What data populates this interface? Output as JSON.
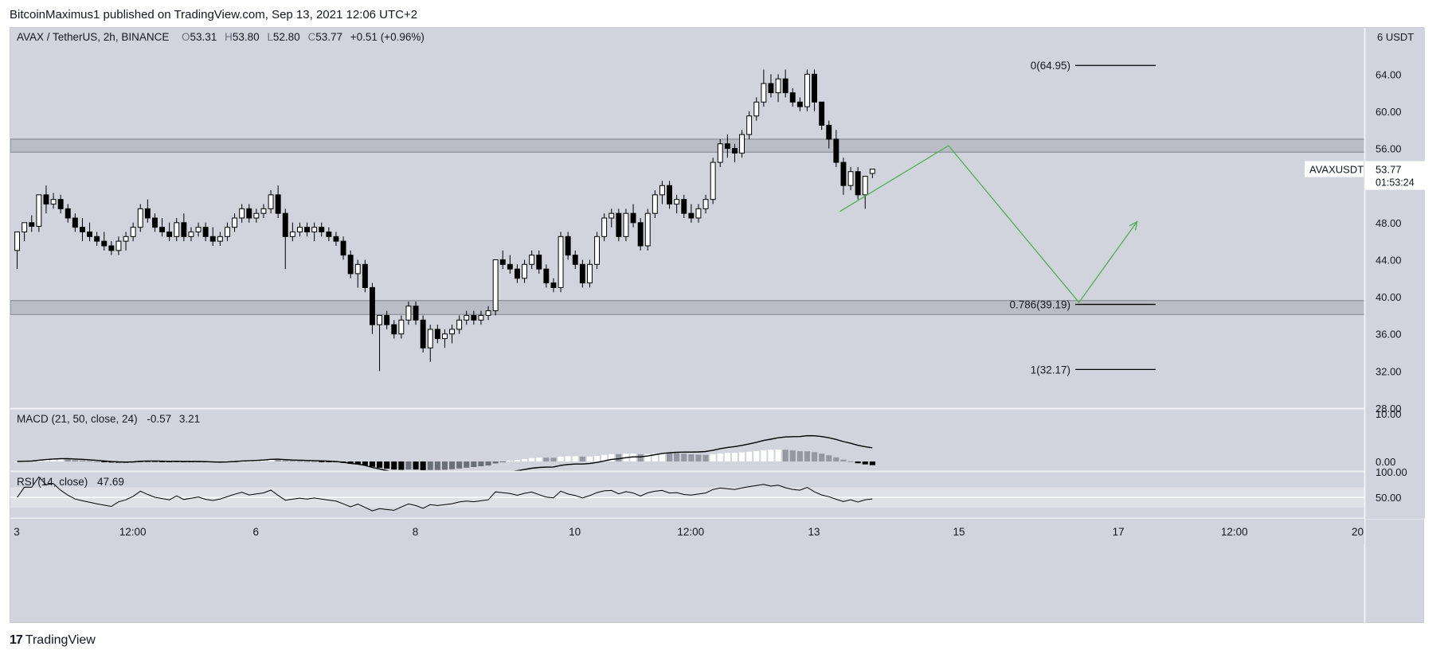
{
  "header": {
    "publish_line": "BitcoinMaximus1 published on TradingView.com, Sep 13, 2021 12:06 UTC+2"
  },
  "footer": {
    "brand": "TradingView",
    "logo_glyph": "17"
  },
  "colors": {
    "panel_bg": "#d1d4dc",
    "candle_up": "#ffffff",
    "candle_down": "#000000",
    "projection": "#4caf50"
  },
  "chart_data": [
    {
      "type": "candlestick",
      "legend": {
        "symbol": "AVAX / TetherUS, 2h, BINANCE",
        "open_label": "O",
        "open": "53.31",
        "high_label": "H",
        "high": "53.80",
        "low_label": "L",
        "low": "52.80",
        "close_label": "C",
        "close": "53.77",
        "change": "+0.51 (+0.96%)"
      },
      "currency_label": "6 USDT",
      "ylim": [
        28,
        69
      ],
      "y_ticks": [
        "64.00",
        "60.00",
        "56.00",
        "52.00",
        "48.00",
        "44.00",
        "40.00",
        "36.00",
        "32.00",
        "28.00"
      ],
      "x_ticks": [
        {
          "label": "3",
          "bar": 0
        },
        {
          "label": "12:00",
          "bar": 16
        },
        {
          "label": "6",
          "bar": 33
        },
        {
          "label": "8",
          "bar": 55
        },
        {
          "label": "10",
          "bar": 77
        },
        {
          "label": "12:00",
          "bar": 93
        },
        {
          "label": "13",
          "bar": 110
        },
        {
          "label": "15",
          "bar": 130
        },
        {
          "label": "17",
          "bar": 152
        },
        {
          "label": "12:00",
          "bar": 168
        },
        {
          "label": "20",
          "bar": 185
        }
      ],
      "price_tag": {
        "symbol": "AVAXUSDT",
        "price": "53.77",
        "countdown": "01:53:24",
        "value": 53.77
      },
      "zones": [
        {
          "low": 55.6,
          "high": 57.0
        },
        {
          "low": 38.1,
          "high": 39.6
        }
      ],
      "fib_levels": [
        {
          "label": "0(64.95)",
          "value": 64.95
        },
        {
          "label": "0.786(39.19)",
          "value": 39.19
        },
        {
          "label": "1(32.17)",
          "value": 32.17
        }
      ],
      "projection_path": [
        {
          "bar": 114,
          "price": 49.2
        },
        {
          "bar": 129,
          "price": 56.3
        },
        {
          "bar": 147,
          "price": 39.4
        },
        {
          "bar": 155,
          "price": 48.1
        }
      ],
      "candles": [
        [
          45,
          47,
          43,
          47
        ],
        [
          47,
          48,
          46,
          48
        ],
        [
          48,
          48.8,
          47,
          47.6
        ],
        [
          47.6,
          51,
          47,
          51
        ],
        [
          51,
          52,
          49,
          50
        ],
        [
          50,
          51.2,
          49.5,
          50.5
        ],
        [
          50.5,
          51,
          49,
          49.5
        ],
        [
          49.5,
          50,
          48,
          48.5
        ],
        [
          48.5,
          49,
          47,
          47.5
        ],
        [
          47.5,
          48.5,
          46,
          47
        ],
        [
          47,
          48,
          46,
          46.5
        ],
        [
          46.5,
          47,
          45.5,
          46
        ],
        [
          46,
          47,
          45,
          45.5
        ],
        [
          45.5,
          46,
          44.5,
          45
        ],
        [
          45,
          46.5,
          44.5,
          46
        ],
        [
          46,
          47,
          45,
          46.5
        ],
        [
          46.5,
          48,
          46,
          47.5
        ],
        [
          47.5,
          50,
          47,
          49.5
        ],
        [
          49.5,
          50.5,
          48,
          48.5
        ],
        [
          48.5,
          49,
          47,
          47.5
        ],
        [
          47.5,
          48.5,
          46.5,
          47
        ],
        [
          47,
          48,
          46,
          46.5
        ],
        [
          46.5,
          48.5,
          46,
          48
        ],
        [
          48,
          49,
          46,
          46.5
        ],
        [
          46.5,
          47.5,
          46,
          47
        ],
        [
          47,
          48,
          46.5,
          47.5
        ],
        [
          47.5,
          48,
          46,
          46.5
        ],
        [
          46.5,
          47.5,
          45.5,
          46
        ],
        [
          46,
          47,
          45.5,
          46.5
        ],
        [
          46.5,
          48,
          46,
          47.5
        ],
        [
          47.5,
          49,
          47,
          48.5
        ],
        [
          48.5,
          50,
          48,
          49.5
        ],
        [
          49.5,
          50,
          48,
          48.5
        ],
        [
          48.5,
          49.5,
          48,
          49
        ],
        [
          49,
          50,
          48.5,
          49.5
        ],
        [
          49.5,
          51.5,
          49,
          51
        ],
        [
          51,
          52,
          48.5,
          49
        ],
        [
          49,
          49.5,
          43,
          46.5
        ],
        [
          46.5,
          48,
          46,
          47
        ],
        [
          47,
          48,
          46.5,
          47.5
        ],
        [
          47.5,
          48,
          46.5,
          47
        ],
        [
          47,
          48,
          46,
          47.5
        ],
        [
          47.5,
          48,
          46.5,
          47
        ],
        [
          47,
          47.5,
          46,
          46.5
        ],
        [
          46.5,
          47,
          45.5,
          46
        ],
        [
          46,
          46.5,
          44,
          44.5
        ],
        [
          44.5,
          45,
          42,
          42.5
        ],
        [
          42.5,
          44,
          41,
          43.5
        ],
        [
          43.5,
          44,
          40.5,
          41
        ],
        [
          41,
          41.5,
          36,
          37
        ],
        [
          37,
          38,
          32,
          38
        ],
        [
          38,
          38.5,
          36.5,
          37
        ],
        [
          37,
          37.5,
          35.5,
          36
        ],
        [
          36,
          38,
          35.5,
          37.5
        ],
        [
          37.5,
          39.5,
          37,
          39
        ],
        [
          39,
          39.5,
          37,
          37.5
        ],
        [
          37.5,
          38,
          34,
          34.5
        ],
        [
          34.5,
          37,
          33,
          36.5
        ],
        [
          36.5,
          37,
          35,
          35.5
        ],
        [
          35.5,
          36.5,
          34.5,
          36
        ],
        [
          36,
          37,
          35,
          36.5
        ],
        [
          36.5,
          38,
          36,
          37.5
        ],
        [
          37.5,
          38.5,
          37,
          38
        ],
        [
          38,
          38.5,
          37,
          37.5
        ],
        [
          37.5,
          38.5,
          37,
          38
        ],
        [
          38,
          39,
          37.5,
          38.5
        ],
        [
          38.5,
          44,
          38,
          44
        ],
        [
          44,
          45,
          43,
          43.5
        ],
        [
          43.5,
          44.5,
          42.5,
          43
        ],
        [
          43,
          43.5,
          41.5,
          42
        ],
        [
          42,
          44,
          41.5,
          43.5
        ],
        [
          43.5,
          45,
          43,
          44.5
        ],
        [
          44.5,
          45,
          42.5,
          43
        ],
        [
          43,
          43.5,
          41,
          41.5
        ],
        [
          41.5,
          42,
          40.5,
          41
        ],
        [
          41,
          47,
          40.5,
          46.5
        ],
        [
          46.5,
          47,
          44,
          44.5
        ],
        [
          44.5,
          45,
          43,
          43.5
        ],
        [
          43.5,
          44,
          41,
          41.5
        ],
        [
          41.5,
          44,
          41,
          43.5
        ],
        [
          43.5,
          47,
          43,
          46.5
        ],
        [
          46.5,
          49,
          46,
          48.5
        ],
        [
          48.5,
          49.5,
          47.5,
          49
        ],
        [
          49,
          49.5,
          46,
          46.5
        ],
        [
          46.5,
          49.5,
          46,
          49
        ],
        [
          49,
          50,
          47.5,
          48
        ],
        [
          48,
          48.5,
          45,
          45.5
        ],
        [
          45.5,
          49.5,
          45,
          49
        ],
        [
          49,
          51.5,
          48.5,
          51
        ],
        [
          51,
          52.5,
          50,
          52
        ],
        [
          52,
          52.5,
          49.5,
          50
        ],
        [
          50,
          51,
          49,
          50.5
        ],
        [
          50.5,
          51,
          48.5,
          49
        ],
        [
          49,
          50,
          48,
          48.5
        ],
        [
          48.5,
          50,
          48,
          49.5
        ],
        [
          49.5,
          51,
          49,
          50.5
        ],
        [
          50.5,
          55,
          50,
          54.5
        ],
        [
          54.5,
          57,
          54,
          56.5
        ],
        [
          56.5,
          57.5,
          55,
          56
        ],
        [
          56,
          56.5,
          54.5,
          55.5
        ],
        [
          55.5,
          58,
          55,
          57.5
        ],
        [
          57.5,
          60,
          57,
          59.5
        ],
        [
          59.5,
          61.5,
          59,
          61
        ],
        [
          61,
          64.5,
          60.5,
          63
        ],
        [
          63,
          64,
          61.5,
          62
        ],
        [
          62,
          64,
          61,
          63.5
        ],
        [
          63.5,
          64.5,
          61.5,
          62
        ],
        [
          62,
          62.5,
          60.5,
          61
        ],
        [
          61,
          61.5,
          60,
          60.5
        ],
        [
          60.5,
          64.5,
          60,
          64
        ],
        [
          64,
          64.5,
          60,
          61
        ],
        [
          61,
          61,
          58,
          58.5
        ],
        [
          58.5,
          59,
          56,
          57
        ],
        [
          57,
          58,
          54,
          54.5
        ],
        [
          54.5,
          55,
          51,
          52
        ],
        [
          52,
          54,
          51.5,
          53.5
        ],
        [
          53.5,
          54,
          50.5,
          51
        ],
        [
          51,
          53,
          49.5,
          53
        ],
        [
          53.3,
          53.8,
          52.8,
          53.77
        ]
      ]
    },
    {
      "type": "line",
      "title": "MACD (21, 50, close, 24)",
      "value_a": "-0.57",
      "value_b": "3.21",
      "ylim": [
        -2,
        11
      ],
      "y_ticks": [
        "10.00",
        "0.00"
      ]
    },
    {
      "type": "line",
      "title": "RSI (14, close)",
      "value": "47.69",
      "ylim": [
        10,
        100
      ],
      "band": [
        30,
        70
      ],
      "y_ticks": [
        "100.00",
        "50.00"
      ]
    }
  ]
}
